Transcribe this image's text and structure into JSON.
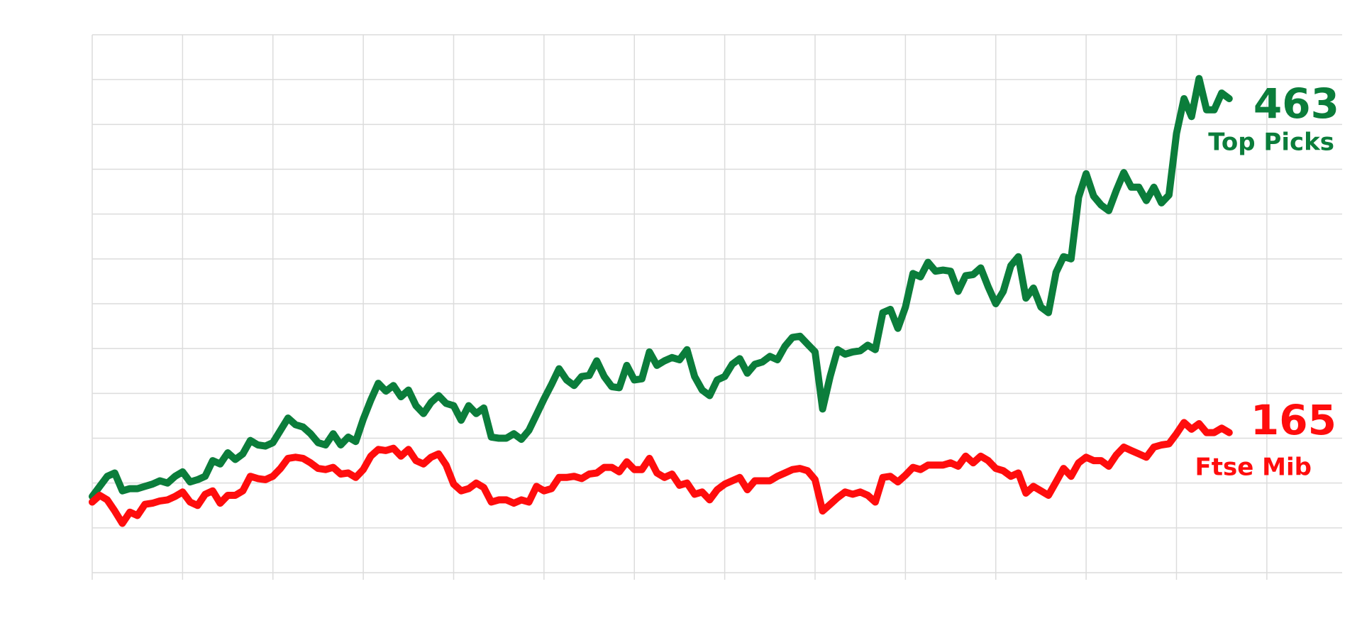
{
  "chart_data": {
    "type": "line",
    "xlim": [
      0,
      166
    ],
    "xticks": [
      0,
      12,
      24,
      36,
      48,
      60,
      72,
      84,
      96,
      108,
      120,
      132,
      144,
      156
    ],
    "ylim": [
      40,
      520
    ],
    "yticks": [
      40,
      80,
      120,
      160,
      200,
      240,
      280,
      320,
      360,
      400,
      440,
      480,
      520
    ],
    "grid": true,
    "series": [
      {
        "name": "Top Picks",
        "color": "#0b7d3b",
        "values": [
          108,
          117,
          126,
          129,
          113,
          115,
          115,
          117,
          119,
          122,
          120,
          126,
          130,
          121,
          123,
          126,
          140,
          137,
          147,
          141,
          146,
          158,
          154,
          153,
          156,
          167,
          178,
          172,
          170,
          164,
          156,
          154,
          164,
          154,
          161,
          157,
          177,
          194,
          209,
          202,
          207,
          197,
          203,
          189,
          182,
          192,
          198,
          191,
          189,
          176,
          189,
          182,
          187,
          161,
          160,
          160,
          164,
          159,
          167,
          181,
          195,
          208,
          222,
          212,
          207,
          215,
          216,
          229,
          215,
          206,
          205,
          225,
          212,
          213,
          237,
          225,
          229,
          232,
          230,
          239,
          215,
          203,
          198,
          212,
          215,
          226,
          231,
          218,
          226,
          228,
          233,
          230,
          242,
          250,
          251,
          244,
          237,
          186,
          215,
          239,
          235,
          237,
          238,
          243,
          239,
          272,
          275,
          258,
          277,
          307,
          304,
          317,
          309,
          310,
          309,
          291,
          305,
          306,
          312,
          295,
          280,
          291,
          314,
          322,
          285,
          294,
          277,
          272,
          308,
          322,
          320,
          375,
          396,
          376,
          368,
          363,
          381,
          397,
          384,
          384,
          372,
          384,
          370,
          377,
          432,
          463,
          447,
          481,
          453,
          453,
          468,
          463
        ]
      },
      {
        "name": "Ftse Mib",
        "color": "#ff0d0d",
        "values": [
          103,
          109,
          105,
          95,
          84,
          94,
          91,
          101,
          102,
          104,
          105,
          108,
          112,
          103,
          100,
          110,
          113,
          102,
          109,
          109,
          113,
          126,
          124,
          123,
          126,
          133,
          142,
          143,
          142,
          138,
          133,
          132,
          134,
          128,
          129,
          125,
          132,
          144,
          150,
          149,
          151,
          144,
          150,
          140,
          137,
          143,
          146,
          136,
          119,
          113,
          115,
          120,
          116,
          103,
          105,
          105,
          102,
          105,
          103,
          117,
          113,
          115,
          125,
          125,
          126,
          124,
          128,
          129,
          134,
          134,
          130,
          139,
          132,
          132,
          142,
          129,
          125,
          128,
          118,
          120,
          110,
          112,
          105,
          114,
          119,
          122,
          125,
          114,
          122,
          122,
          122,
          126,
          129,
          132,
          133,
          131,
          123,
          95,
          101,
          107,
          112,
          110,
          112,
          109,
          103,
          125,
          126,
          121,
          127,
          134,
          132,
          136,
          136,
          136,
          138,
          135,
          144,
          138,
          144,
          140,
          133,
          131,
          126,
          129,
          111,
          117,
          113,
          109,
          121,
          133,
          126,
          138,
          143,
          140,
          140,
          135,
          145,
          152,
          149,
          146,
          143,
          152,
          154,
          155,
          164,
          174,
          168,
          173,
          165,
          165,
          169,
          165
        ]
      }
    ]
  }
}
